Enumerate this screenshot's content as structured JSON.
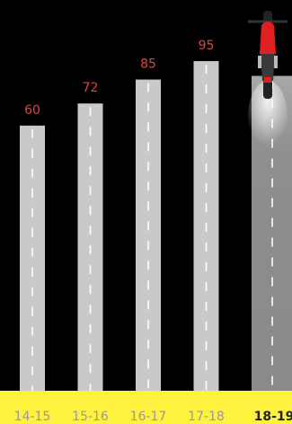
{
  "chart_data": {
    "type": "bar",
    "categories": [
      "14-15",
      "15-16",
      "16-17",
      "17-18",
      "18-19"
    ],
    "values": [
      60,
      72,
      85,
      95,
      87
    ],
    "color": "#c9c9c9",
    "highlight_index": 4,
    "highlight_color": "#8e8e8e",
    "ylim": [
      -84,
      100
    ]
  }
}
